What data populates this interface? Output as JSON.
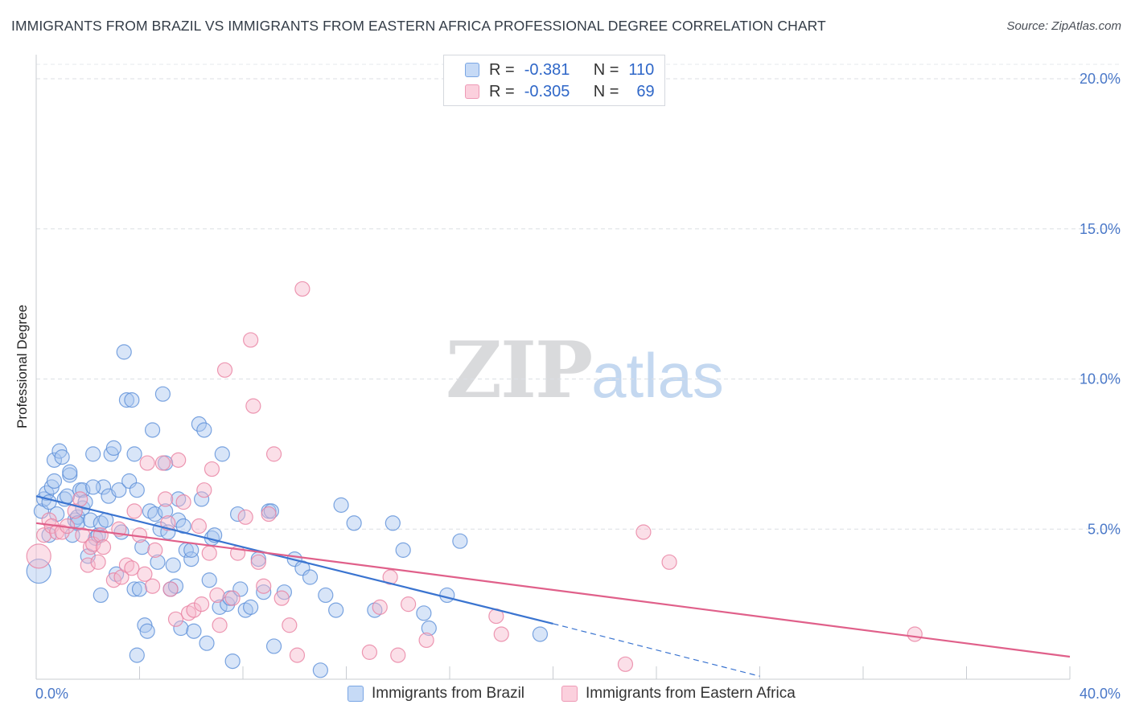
{
  "title": "IMMIGRANTS FROM BRAZIL VS IMMIGRANTS FROM EASTERN AFRICA PROFESSIONAL DEGREE CORRELATION CHART",
  "source": "Source: ZipAtlas.com",
  "watermark": {
    "zip": "ZIP",
    "atlas": "atlas"
  },
  "legend_top": {
    "rows": [
      {
        "r_label": "R =",
        "r_value": "-0.381",
        "n_label": "N =",
        "n_value": "110",
        "color": "#a8c6f0"
      },
      {
        "r_label": "R =",
        "r_value": "-0.305",
        "n_label": "N =",
        "n_value": "69",
        "color": "#f6b8cc"
      }
    ]
  },
  "legend_bottom": [
    {
      "label": "Immigrants from Brazil",
      "color": "#a8c6f0"
    },
    {
      "label": "Immigrants from Eastern Africa",
      "color": "#f6b8cc"
    }
  ],
  "chart_data": {
    "type": "scatter",
    "ylabel": "Professional Degree",
    "xlabel": "",
    "xlim": [
      0,
      40
    ],
    "ylim": [
      0,
      20.5
    ],
    "x_tick_labels": [
      {
        "x": 0,
        "label": "0.0%"
      },
      {
        "x": 40,
        "label": "40.0%"
      }
    ],
    "y_tick_labels": [
      {
        "y": 5,
        "label": "5.0%"
      },
      {
        "y": 10,
        "label": "10.0%"
      },
      {
        "y": 15,
        "label": "15.0%"
      },
      {
        "y": 20,
        "label": "20.0%"
      }
    ],
    "grid": true,
    "legend_position": "top-center",
    "series": [
      {
        "name": "Immigrants from Brazil",
        "color": "#5b8fd8",
        "fill": "#a8c6f0",
        "trend": {
          "x0": 0,
          "y0": 6.1,
          "x1": 20,
          "y1": 1.85,
          "dashed_to_x": 28,
          "dashed_to_y": 0.1,
          "color": "#3a74d0"
        },
        "points": [
          [
            0.1,
            3.6
          ],
          [
            0.2,
            5.6
          ],
          [
            0.3,
            6.0
          ],
          [
            0.4,
            6.2
          ],
          [
            0.5,
            5.9
          ],
          [
            0.5,
            4.8
          ],
          [
            0.6,
            6.4
          ],
          [
            0.7,
            7.3
          ],
          [
            0.7,
            6.6
          ],
          [
            0.8,
            5.5
          ],
          [
            0.9,
            7.6
          ],
          [
            1.0,
            7.4
          ],
          [
            1.1,
            6.0
          ],
          [
            1.2,
            6.1
          ],
          [
            1.3,
            6.8
          ],
          [
            1.3,
            6.9
          ],
          [
            1.4,
            4.8
          ],
          [
            1.5,
            5.3
          ],
          [
            1.6,
            5.4
          ],
          [
            1.6,
            5.2
          ],
          [
            1.7,
            6.3
          ],
          [
            1.8,
            6.3
          ],
          [
            1.8,
            5.7
          ],
          [
            1.9,
            5.9
          ],
          [
            2.0,
            4.1
          ],
          [
            2.1,
            5.3
          ],
          [
            2.2,
            7.5
          ],
          [
            2.3,
            4.7
          ],
          [
            2.4,
            4.8
          ],
          [
            2.5,
            5.2
          ],
          [
            2.5,
            2.8
          ],
          [
            2.6,
            6.4
          ],
          [
            2.7,
            5.3
          ],
          [
            2.8,
            6.1
          ],
          [
            2.9,
            7.5
          ],
          [
            3.0,
            7.7
          ],
          [
            3.1,
            3.5
          ],
          [
            3.2,
            6.3
          ],
          [
            3.3,
            4.9
          ],
          [
            3.4,
            10.9
          ],
          [
            3.5,
            9.3
          ],
          [
            3.6,
            6.6
          ],
          [
            3.7,
            9.3
          ],
          [
            3.8,
            7.5
          ],
          [
            3.8,
            3.0
          ],
          [
            3.9,
            6.3
          ],
          [
            4.0,
            3.0
          ],
          [
            4.1,
            4.4
          ],
          [
            4.2,
            1.8
          ],
          [
            4.3,
            1.6
          ],
          [
            4.4,
            5.6
          ],
          [
            4.5,
            8.3
          ],
          [
            4.6,
            5.5
          ],
          [
            4.7,
            3.9
          ],
          [
            4.8,
            5.0
          ],
          [
            4.9,
            9.5
          ],
          [
            5.0,
            5.6
          ],
          [
            5.0,
            7.2
          ],
          [
            5.1,
            4.9
          ],
          [
            5.2,
            3.0
          ],
          [
            5.3,
            3.8
          ],
          [
            5.4,
            3.1
          ],
          [
            5.5,
            5.3
          ],
          [
            5.5,
            6.0
          ],
          [
            5.6,
            1.7
          ],
          [
            5.7,
            5.1
          ],
          [
            5.8,
            4.3
          ],
          [
            6.0,
            4.0
          ],
          [
            6.1,
            1.6
          ],
          [
            6.3,
            8.5
          ],
          [
            6.4,
            6.0
          ],
          [
            6.5,
            8.3
          ],
          [
            6.6,
            1.2
          ],
          [
            6.7,
            3.3
          ],
          [
            6.8,
            4.7
          ],
          [
            6.9,
            4.8
          ],
          [
            7.1,
            2.4
          ],
          [
            7.2,
            7.5
          ],
          [
            7.4,
            2.5
          ],
          [
            7.5,
            2.7
          ],
          [
            7.6,
            0.6
          ],
          [
            7.8,
            5.5
          ],
          [
            7.9,
            3.0
          ],
          [
            8.1,
            2.3
          ],
          [
            8.3,
            2.4
          ],
          [
            8.6,
            4.0
          ],
          [
            8.8,
            2.9
          ],
          [
            9.0,
            5.6
          ],
          [
            9.1,
            5.6
          ],
          [
            9.2,
            1.1
          ],
          [
            9.6,
            2.9
          ],
          [
            10.0,
            4.0
          ],
          [
            10.3,
            3.7
          ],
          [
            10.6,
            3.4
          ],
          [
            11.2,
            2.8
          ],
          [
            11.6,
            2.3
          ],
          [
            11.8,
            5.8
          ],
          [
            12.3,
            5.2
          ],
          [
            13.1,
            2.3
          ],
          [
            13.8,
            5.2
          ],
          [
            14.2,
            4.3
          ],
          [
            15.2,
            1.7
          ],
          [
            15.9,
            2.8
          ],
          [
            16.4,
            4.6
          ],
          [
            19.5,
            1.5
          ],
          [
            3.9,
            0.8
          ],
          [
            11.0,
            0.3
          ],
          [
            6.0,
            4.3
          ],
          [
            2.2,
            6.4
          ],
          [
            15.0,
            2.2
          ]
        ]
      },
      {
        "name": "Immigrants from Eastern Africa",
        "color": "#e880a0",
        "fill": "#f6b8cc",
        "trend": {
          "x0": 0,
          "y0": 5.2,
          "x1": 40,
          "y1": 0.75,
          "color": "#e0608a"
        },
        "points": [
          [
            0.1,
            4.1
          ],
          [
            0.3,
            4.8
          ],
          [
            0.5,
            5.3
          ],
          [
            0.6,
            5.1
          ],
          [
            0.8,
            4.9
          ],
          [
            1.0,
            4.9
          ],
          [
            1.2,
            5.1
          ],
          [
            1.5,
            5.6
          ],
          [
            1.7,
            6.0
          ],
          [
            1.8,
            4.8
          ],
          [
            2.0,
            3.8
          ],
          [
            2.1,
            4.4
          ],
          [
            2.2,
            4.5
          ],
          [
            2.4,
            3.9
          ],
          [
            2.5,
            4.8
          ],
          [
            2.6,
            4.4
          ],
          [
            3.0,
            3.3
          ],
          [
            3.2,
            5.0
          ],
          [
            3.3,
            3.4
          ],
          [
            3.5,
            3.8
          ],
          [
            3.7,
            3.7
          ],
          [
            3.8,
            5.6
          ],
          [
            4.0,
            4.8
          ],
          [
            4.2,
            3.5
          ],
          [
            4.3,
            7.2
          ],
          [
            4.5,
            3.1
          ],
          [
            4.6,
            4.3
          ],
          [
            4.9,
            7.2
          ],
          [
            5.0,
            6.0
          ],
          [
            5.1,
            5.2
          ],
          [
            5.2,
            3.0
          ],
          [
            5.4,
            2.0
          ],
          [
            5.5,
            7.3
          ],
          [
            5.7,
            5.9
          ],
          [
            5.9,
            2.2
          ],
          [
            6.1,
            2.3
          ],
          [
            6.3,
            5.1
          ],
          [
            6.4,
            2.5
          ],
          [
            6.5,
            6.3
          ],
          [
            6.7,
            4.2
          ],
          [
            6.8,
            7.0
          ],
          [
            7.0,
            2.8
          ],
          [
            7.1,
            1.8
          ],
          [
            7.3,
            10.3
          ],
          [
            7.6,
            2.7
          ],
          [
            7.8,
            4.2
          ],
          [
            8.1,
            5.4
          ],
          [
            8.3,
            11.3
          ],
          [
            8.4,
            9.1
          ],
          [
            8.6,
            3.9
          ],
          [
            8.8,
            3.1
          ],
          [
            9.0,
            5.5
          ],
          [
            9.2,
            7.5
          ],
          [
            9.5,
            2.7
          ],
          [
            9.8,
            1.8
          ],
          [
            10.1,
            0.8
          ],
          [
            10.3,
            13.0
          ],
          [
            12.9,
            0.9
          ],
          [
            13.3,
            2.4
          ],
          [
            13.7,
            3.4
          ],
          [
            14.0,
            0.8
          ],
          [
            14.4,
            2.5
          ],
          [
            15.1,
            1.3
          ],
          [
            17.8,
            2.1
          ],
          [
            18.0,
            1.5
          ],
          [
            22.8,
            0.5
          ],
          [
            23.5,
            4.9
          ],
          [
            24.5,
            3.9
          ],
          [
            34.0,
            1.5
          ]
        ]
      }
    ]
  }
}
